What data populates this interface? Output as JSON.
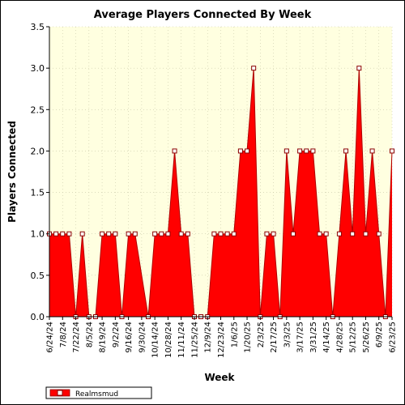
{
  "chart_data": {
    "type": "area",
    "title": "Average Players Connected By Week",
    "xlabel": "Week",
    "ylabel": "Players Connected",
    "ylim": [
      0,
      3.5
    ],
    "yticks": [
      0.0,
      0.5,
      1.0,
      1.5,
      2.0,
      2.5,
      3.0,
      3.5
    ],
    "ytick_labels": [
      "0.0",
      "0.5",
      "1.0",
      "1.5",
      "2.0",
      "2.5",
      "3.0",
      "3.5"
    ],
    "grid": true,
    "legend_position": "bottom-left",
    "colors": {
      "fill": "#ff0000",
      "line": "#b00000",
      "marker_edge": "#8b0000",
      "plot_bg": "#ffffe0"
    },
    "x": [
      "6/24/24",
      "7/1/24",
      "7/8/24",
      "7/15/24",
      "7/22/24",
      "7/29/24",
      "8/5/24",
      "8/12/24",
      "8/19/24",
      "8/26/24",
      "9/2/24",
      "9/9/24",
      "9/16/24",
      "9/23/24",
      "10/7/24",
      "10/14/24",
      "10/21/24",
      "10/28/24",
      "11/4/24",
      "11/11/24",
      "11/18/24",
      "11/25/24",
      "12/2/24",
      "12/9/24",
      "12/16/24",
      "12/23/24",
      "12/30/24",
      "1/6/25",
      "1/13/25",
      "1/20/25",
      "1/27/25",
      "2/3/25",
      "2/10/25",
      "2/17/25",
      "2/24/25",
      "3/3/25",
      "3/10/25",
      "3/17/25",
      "3/24/25",
      "3/31/25",
      "4/7/25",
      "4/14/25",
      "4/21/25",
      "4/28/25",
      "5/5/25",
      "5/12/25",
      "5/19/25",
      "5/26/25",
      "6/2/25",
      "6/9/25",
      "6/16/25",
      "6/23/25"
    ],
    "xtick_labels": [
      "6/24/24",
      "7/8/24",
      "7/22/24",
      "8/5/24",
      "8/19/24",
      "9/2/24",
      "9/16/24",
      "9/30/24",
      "10/14/24",
      "10/28/24",
      "11/11/24",
      "11/25/24",
      "12/9/24",
      "12/23/24",
      "1/6/25",
      "1/20/25",
      "2/3/25",
      "2/17/25",
      "3/3/25",
      "3/17/25",
      "3/31/25",
      "4/14/25",
      "4/28/25",
      "5/12/25",
      "5/26/25",
      "6/9/25",
      "6/23/25"
    ],
    "series": [
      {
        "name": "Realmsmud",
        "values": [
          1,
          1,
          1,
          1,
          0,
          1,
          0,
          0,
          1,
          1,
          1,
          0,
          1,
          1,
          0,
          1,
          1,
          1,
          2,
          1,
          1,
          0,
          0,
          0,
          1,
          1,
          1,
          1,
          2,
          2,
          3,
          0,
          1,
          1,
          0,
          2,
          1,
          2,
          2,
          2,
          1,
          1,
          0,
          1,
          2,
          1,
          3,
          1,
          2,
          1,
          0,
          2
        ]
      }
    ]
  }
}
